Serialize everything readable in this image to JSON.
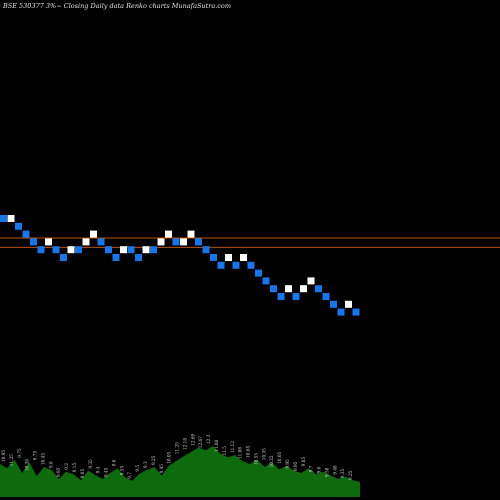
{
  "chart_data": {
    "type": "renko",
    "title": "BSE 530377 3%~  Closing Daily data  Renko  charts MunafaSutra.com",
    "colors": {
      "background": "#000000",
      "up": "#ffffff",
      "down": "#1976e8",
      "line": "#b8500f",
      "volume": "#0d6b0d"
    },
    "reference_lines": [
      15.75,
      15.63
    ],
    "bricks": [
      {
        "value": 16.0,
        "dir": "down"
      },
      {
        "value": 16.0,
        "dir": "up"
      },
      {
        "value": 15.9,
        "dir": "down"
      },
      {
        "value": 15.8,
        "dir": "down"
      },
      {
        "value": 15.7,
        "dir": "down"
      },
      {
        "value": 15.6,
        "dir": "down"
      },
      {
        "value": 15.7,
        "dir": "up"
      },
      {
        "value": 15.6,
        "dir": "down"
      },
      {
        "value": 15.5,
        "dir": "down"
      },
      {
        "value": 15.6,
        "dir": "up"
      },
      {
        "value": 15.6,
        "dir": "down"
      },
      {
        "value": 15.7,
        "dir": "up"
      },
      {
        "value": 15.8,
        "dir": "up"
      },
      {
        "value": 15.7,
        "dir": "down"
      },
      {
        "value": 15.6,
        "dir": "down"
      },
      {
        "value": 15.5,
        "dir": "down"
      },
      {
        "value": 15.6,
        "dir": "up"
      },
      {
        "value": 15.6,
        "dir": "down"
      },
      {
        "value": 15.5,
        "dir": "down"
      },
      {
        "value": 15.6,
        "dir": "up"
      },
      {
        "value": 15.6,
        "dir": "down"
      },
      {
        "value": 15.7,
        "dir": "up"
      },
      {
        "value": 15.8,
        "dir": "up"
      },
      {
        "value": 15.7,
        "dir": "down"
      },
      {
        "value": 15.7,
        "dir": "up"
      },
      {
        "value": 15.8,
        "dir": "up"
      },
      {
        "value": 15.7,
        "dir": "down"
      },
      {
        "value": 15.6,
        "dir": "down"
      },
      {
        "value": 15.5,
        "dir": "down"
      },
      {
        "value": 15.4,
        "dir": "down"
      },
      {
        "value": 15.5,
        "dir": "up"
      },
      {
        "value": 15.4,
        "dir": "down"
      },
      {
        "value": 15.5,
        "dir": "up"
      },
      {
        "value": 15.4,
        "dir": "down"
      },
      {
        "value": 15.3,
        "dir": "down"
      },
      {
        "value": 15.2,
        "dir": "down"
      },
      {
        "value": 15.1,
        "dir": "down"
      },
      {
        "value": 15.0,
        "dir": "down"
      },
      {
        "value": 15.1,
        "dir": "up"
      },
      {
        "value": 15.0,
        "dir": "down"
      },
      {
        "value": 15.1,
        "dir": "up"
      },
      {
        "value": 15.2,
        "dir": "up"
      },
      {
        "value": 15.1,
        "dir": "down"
      },
      {
        "value": 15.0,
        "dir": "down"
      },
      {
        "value": 14.9,
        "dir": "down"
      },
      {
        "value": 14.8,
        "dir": "down"
      },
      {
        "value": 14.9,
        "dir": "up"
      },
      {
        "value": 14.8,
        "dir": "down"
      }
    ],
    "volume_labels": [
      "10.95",
      "11.25",
      "9.75",
      "10.36",
      "9.75",
      "10.45",
      "9.8",
      "9.95",
      "9.2",
      "9.15",
      "9.05",
      "9.35",
      "9.4",
      "9.45",
      "9.6",
      "9.55",
      "9.7",
      "9.5",
      "9.3",
      "9.25",
      "9.45",
      "10.05",
      "11.25",
      "12.18",
      "12.69",
      "12.67",
      "12.3",
      "11.88",
      "11.5",
      "11.12",
      "11.06",
      "10.85",
      "10.55",
      "10.35",
      "10.22",
      "10.05",
      "9.95",
      "9.95",
      "9.85",
      "9.7",
      "9.6",
      "9.58",
      "9.48",
      "9.35",
      "9.25"
    ],
    "volume_levels": [
      0.55,
      0.48,
      0.62,
      0.4,
      0.58,
      0.35,
      0.5,
      0.45,
      0.3,
      0.42,
      0.38,
      0.28,
      0.44,
      0.36,
      0.3,
      0.4,
      0.48,
      0.33,
      0.27,
      0.39,
      0.45,
      0.5,
      0.36,
      0.52,
      0.6,
      0.68,
      0.75,
      0.82,
      0.78,
      0.85,
      0.72,
      0.66,
      0.7,
      0.6,
      0.55,
      0.62,
      0.5,
      0.58,
      0.46,
      0.52,
      0.44,
      0.4,
      0.48,
      0.38,
      0.42,
      0.36,
      0.3,
      0.34,
      0.28,
      0.25
    ]
  }
}
